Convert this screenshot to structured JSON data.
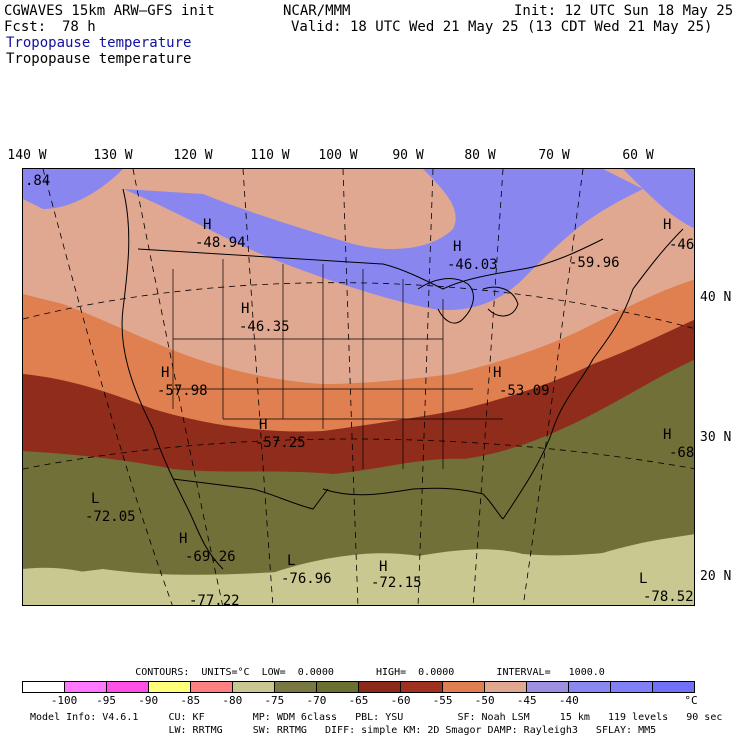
{
  "header": {
    "model": "CGWAVES 15km ARW–GFS init",
    "fcst_label": "Fcst:",
    "fcst_value": "78 h",
    "org": "NCAR/MMM",
    "init": "Init: 12 UTC Sun 18 May 25",
    "valid": "Valid: 18 UTC Wed 21 May 25 (13 CDT Wed 21 May 25)",
    "field1": "Tropopause temperature",
    "field2": "Tropopause temperature"
  },
  "longitudes": [
    "140 W",
    "130 W",
    "120 W",
    "110 W",
    "100 W",
    "90 W",
    "80 W",
    "70 W",
    "60 W"
  ],
  "latitudes": [
    "40 N",
    "30 N",
    "20 N"
  ],
  "map_labels": [
    {
      "type": "H",
      "value": "-48.94"
    },
    {
      "type": "H",
      "value": "-46.03"
    },
    {
      "type": "",
      "value": "-59.96"
    },
    {
      "type": "H",
      "value": "-46"
    },
    {
      "type": "H",
      "value": "-46.35"
    },
    {
      "type": "H",
      "value": "-57.98"
    },
    {
      "type": "H",
      "value": "-53.09"
    },
    {
      "type": "H",
      "value": "-57.25"
    },
    {
      "type": "H",
      "value": "-68"
    },
    {
      "type": "L",
      "value": "-72.05"
    },
    {
      "type": "H",
      "value": "-69.26"
    },
    {
      "type": "L",
      "value": "-76.96"
    },
    {
      "type": "H",
      "value": "-72.15"
    },
    {
      "type": "",
      "value": "-77.22"
    },
    {
      "type": "L",
      "value": "-78.52"
    },
    {
      "type": "",
      "value": ".84"
    }
  ],
  "contours": "CONTOURS:  UNITS=°C  LOW=  0.0000       HIGH=  0.0000       INTERVAL=   1000.0",
  "colorbar": {
    "colors": [
      "#ffffff",
      "#ff78ff",
      "#ff50e6",
      "#ffff78",
      "#ff8080",
      "#c8c890",
      "#787840",
      "#6a7030",
      "#8c2a1a",
      "#a03020",
      "#e08050",
      "#e0a890",
      "#9c90e0",
      "#8888f0",
      "#8080f8",
      "#7070f8"
    ],
    "labels": [
      "-100",
      "-95",
      "-90",
      "-85",
      "-80",
      "-75",
      "-70",
      "-65",
      "-60",
      "-55",
      "-50",
      "-45",
      "-40"
    ],
    "unit": "°C"
  },
  "footer": {
    "line1": "Model Info: V4.6.1     CU: KF        MP: WDM 6class   PBL: YSU         SF: Noah LSM     15 km   119 levels   90 sec",
    "line2": "                       LW: RRTMG     SW: RRTMG   DIFF: simple KM: 2D Smagor DAMP: Rayleigh3   SFLAY: MM5"
  }
}
